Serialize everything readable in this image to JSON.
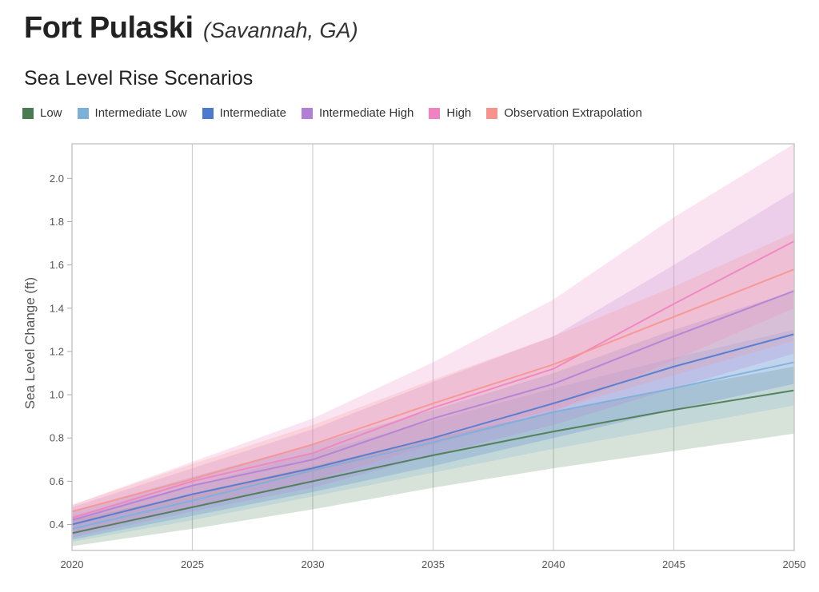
{
  "header": {
    "title": "Fort Pulaski",
    "location": "(Savannah, GA)",
    "subtitle": "Sea Level Rise Scenarios"
  },
  "chart_data": {
    "type": "area",
    "title": "Sea Level Rise Scenarios",
    "xlabel": "",
    "ylabel": "Sea Level Change (ft)",
    "xlim": [
      2020,
      2050
    ],
    "ylim": [
      0.28,
      2.16
    ],
    "x_ticks": [
      2020,
      2025,
      2030,
      2035,
      2040,
      2045,
      2050
    ],
    "x_tick_labels": [
      "2020",
      "2025",
      "2030",
      "2035",
      "2040",
      "2045",
      "2050"
    ],
    "y_ticks": [
      0.4,
      0.6,
      0.8,
      1.0,
      1.2,
      1.4,
      1.6,
      1.8,
      2.0
    ],
    "y_tick_labels": [
      "0.4",
      "0.6",
      "0.8",
      "1.0",
      "1.2",
      "1.4",
      "1.6",
      "1.8",
      "2.0"
    ],
    "grid": "vertical",
    "legend_position": "top-left",
    "x": [
      2020,
      2025,
      2030,
      2035,
      2040,
      2045,
      2050
    ],
    "series": [
      {
        "name": "Low",
        "color": "#4a7a4f",
        "values": [
          0.36,
          0.48,
          0.6,
          0.72,
          0.83,
          0.93,
          1.02
        ],
        "lower": [
          0.3,
          0.38,
          0.47,
          0.57,
          0.66,
          0.74,
          0.82
        ],
        "upper": [
          0.42,
          0.54,
          0.67,
          0.8,
          0.92,
          1.03,
          1.13
        ]
      },
      {
        "name": "Intermediate Low",
        "color": "#7bb0d8",
        "values": [
          0.38,
          0.51,
          0.65,
          0.78,
          0.92,
          1.03,
          1.15
        ],
        "lower": [
          0.32,
          0.42,
          0.53,
          0.64,
          0.75,
          0.85,
          0.95
        ],
        "upper": [
          0.44,
          0.58,
          0.73,
          0.88,
          1.03,
          1.17,
          1.3
        ]
      },
      {
        "name": "Intermediate",
        "color": "#4d7ad1",
        "values": [
          0.4,
          0.54,
          0.66,
          0.8,
          0.96,
          1.13,
          1.28
        ],
        "lower": [
          0.33,
          0.44,
          0.55,
          0.67,
          0.8,
          0.93,
          1.05
        ],
        "upper": [
          0.46,
          0.62,
          0.77,
          0.93,
          1.1,
          1.3,
          1.48
        ]
      },
      {
        "name": "Intermediate High",
        "color": "#b27fd6",
        "values": [
          0.42,
          0.58,
          0.7,
          0.89,
          1.05,
          1.27,
          1.48
        ],
        "lower": [
          0.34,
          0.46,
          0.57,
          0.72,
          0.86,
          1.03,
          1.19
        ],
        "upper": [
          0.48,
          0.66,
          0.84,
          1.06,
          1.27,
          1.6,
          1.94
        ]
      },
      {
        "name": "High",
        "color": "#ef82c0",
        "values": [
          0.43,
          0.6,
          0.73,
          0.94,
          1.12,
          1.42,
          1.71
        ],
        "lower": [
          0.35,
          0.48,
          0.6,
          0.77,
          0.92,
          1.16,
          1.4
        ],
        "upper": [
          0.49,
          0.69,
          0.89,
          1.15,
          1.44,
          1.82,
          2.16
        ]
      },
      {
        "name": "Observation Extrapolation",
        "color": "#f7938f",
        "values": [
          0.46,
          0.61,
          0.77,
          0.96,
          1.14,
          1.36,
          1.58
        ],
        "lower": [
          0.4,
          0.52,
          0.64,
          0.79,
          0.93,
          1.09,
          1.25
        ],
        "upper": [
          0.49,
          0.68,
          0.86,
          1.07,
          1.27,
          1.5,
          1.75
        ]
      }
    ]
  }
}
